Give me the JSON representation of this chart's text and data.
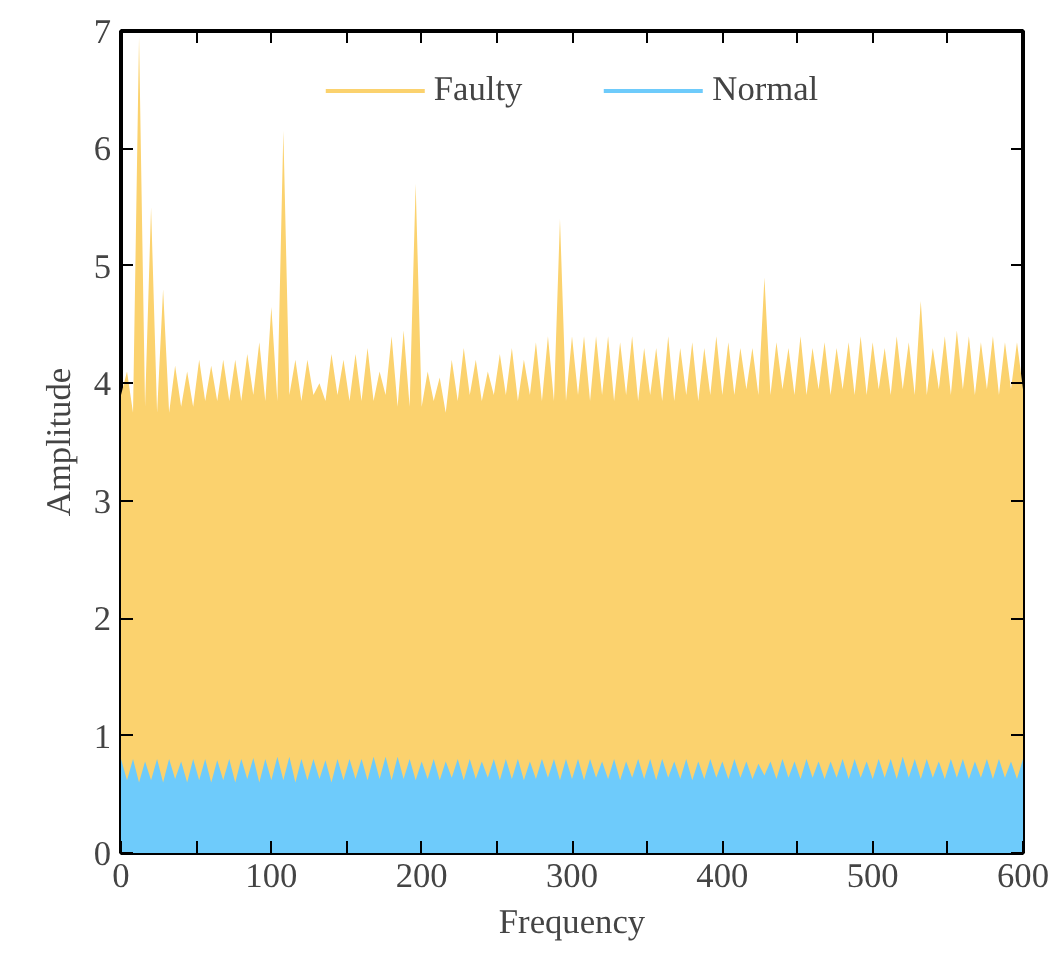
{
  "chart_data": {
    "type": "area",
    "xlabel": "Frequency",
    "ylabel": "Amplitude",
    "x": [
      0,
      4,
      8,
      12,
      16,
      20,
      24,
      28,
      32,
      36,
      40,
      44,
      48,
      52,
      56,
      60,
      64,
      68,
      72,
      76,
      80,
      84,
      88,
      92,
      96,
      100,
      104,
      108,
      112,
      116,
      120,
      124,
      128,
      132,
      136,
      140,
      144,
      148,
      152,
      156,
      160,
      164,
      168,
      172,
      176,
      180,
      184,
      188,
      192,
      196,
      200,
      204,
      208,
      212,
      216,
      220,
      224,
      228,
      232,
      236,
      240,
      244,
      248,
      252,
      256,
      260,
      264,
      268,
      272,
      276,
      280,
      284,
      288,
      292,
      296,
      300,
      304,
      308,
      312,
      316,
      320,
      324,
      328,
      332,
      336,
      340,
      344,
      348,
      352,
      356,
      360,
      364,
      368,
      372,
      376,
      380,
      384,
      388,
      392,
      396,
      400,
      404,
      408,
      412,
      416,
      420,
      424,
      428,
      432,
      436,
      440,
      444,
      448,
      452,
      456,
      460,
      464,
      468,
      472,
      476,
      480,
      484,
      488,
      492,
      496,
      500,
      504,
      508,
      512,
      516,
      520,
      524,
      528,
      532,
      536,
      540,
      544,
      548,
      552,
      556,
      560,
      564,
      568,
      572,
      576,
      580,
      584,
      588,
      592,
      596,
      600
    ],
    "xlim": [
      0,
      600
    ],
    "xticks": [
      0,
      100,
      200,
      300,
      400,
      500,
      600
    ],
    "ylim": [
      0,
      7
    ],
    "yticks": [
      0,
      1,
      2,
      3,
      4,
      5,
      6,
      7
    ],
    "grid": false,
    "legend": "top",
    "series": [
      {
        "name": "Faulty",
        "color": "#fbd26e",
        "values": [
          3.9,
          4.1,
          3.75,
          6.95,
          3.8,
          5.5,
          3.75,
          4.8,
          3.75,
          4.15,
          3.8,
          4.1,
          3.8,
          4.2,
          3.85,
          4.15,
          3.85,
          4.2,
          3.85,
          4.2,
          3.85,
          4.25,
          3.9,
          4.35,
          3.85,
          4.65,
          3.85,
          6.15,
          3.9,
          4.2,
          3.85,
          4.2,
          3.9,
          4.0,
          3.85,
          4.25,
          3.9,
          4.2,
          3.85,
          4.25,
          3.85,
          4.3,
          3.85,
          4.1,
          3.9,
          4.4,
          3.8,
          4.45,
          3.8,
          5.7,
          3.8,
          4.1,
          3.85,
          4.05,
          3.75,
          4.2,
          3.85,
          4.3,
          3.9,
          4.2,
          3.85,
          4.1,
          3.9,
          4.25,
          3.9,
          4.3,
          3.85,
          4.2,
          3.9,
          4.35,
          3.85,
          4.4,
          3.85,
          5.4,
          3.85,
          4.4,
          3.9,
          4.4,
          3.85,
          4.4,
          3.9,
          4.4,
          3.85,
          4.35,
          3.9,
          4.4,
          3.85,
          4.3,
          3.9,
          4.3,
          3.85,
          4.4,
          3.85,
          4.3,
          3.9,
          4.35,
          3.85,
          4.3,
          3.9,
          4.4,
          3.9,
          4.35,
          3.9,
          4.3,
          3.95,
          4.3,
          3.9,
          4.9,
          3.9,
          4.35,
          3.95,
          4.3,
          3.9,
          4.4,
          3.9,
          4.3,
          3.95,
          4.35,
          3.9,
          4.3,
          3.95,
          4.35,
          3.9,
          4.4,
          3.9,
          4.35,
          3.95,
          4.3,
          3.9,
          4.4,
          3.95,
          4.35,
          3.9,
          4.7,
          3.9,
          4.3,
          3.95,
          4.4,
          3.9,
          4.45,
          3.95,
          4.4,
          3.9,
          4.35,
          3.95,
          4.4,
          3.9,
          4.35,
          3.95,
          4.35,
          3.95
        ]
      },
      {
        "name": "Normal",
        "color": "#6ecbfb",
        "values": [
          0.8,
          0.62,
          0.8,
          0.6,
          0.78,
          0.62,
          0.8,
          0.6,
          0.8,
          0.63,
          0.78,
          0.6,
          0.8,
          0.62,
          0.8,
          0.6,
          0.79,
          0.62,
          0.8,
          0.6,
          0.8,
          0.63,
          0.81,
          0.6,
          0.8,
          0.62,
          0.82,
          0.62,
          0.82,
          0.6,
          0.8,
          0.62,
          0.8,
          0.63,
          0.79,
          0.6,
          0.8,
          0.62,
          0.8,
          0.63,
          0.8,
          0.62,
          0.82,
          0.63,
          0.82,
          0.62,
          0.82,
          0.63,
          0.8,
          0.62,
          0.78,
          0.63,
          0.8,
          0.62,
          0.78,
          0.64,
          0.8,
          0.62,
          0.8,
          0.63,
          0.78,
          0.64,
          0.8,
          0.62,
          0.8,
          0.63,
          0.8,
          0.62,
          0.78,
          0.63,
          0.8,
          0.64,
          0.8,
          0.62,
          0.8,
          0.63,
          0.8,
          0.62,
          0.8,
          0.64,
          0.78,
          0.63,
          0.8,
          0.62,
          0.78,
          0.64,
          0.8,
          0.63,
          0.8,
          0.62,
          0.8,
          0.64,
          0.78,
          0.63,
          0.8,
          0.62,
          0.78,
          0.63,
          0.8,
          0.64,
          0.78,
          0.63,
          0.8,
          0.64,
          0.78,
          0.63,
          0.76,
          0.66,
          0.78,
          0.63,
          0.8,
          0.64,
          0.78,
          0.63,
          0.8,
          0.64,
          0.78,
          0.63,
          0.78,
          0.64,
          0.8,
          0.63,
          0.8,
          0.64,
          0.78,
          0.63,
          0.8,
          0.64,
          0.8,
          0.63,
          0.82,
          0.64,
          0.8,
          0.63,
          0.8,
          0.64,
          0.78,
          0.63,
          0.8,
          0.64,
          0.8,
          0.63,
          0.78,
          0.64,
          0.8,
          0.63,
          0.8,
          0.64,
          0.78,
          0.63,
          0.8
        ]
      }
    ]
  }
}
